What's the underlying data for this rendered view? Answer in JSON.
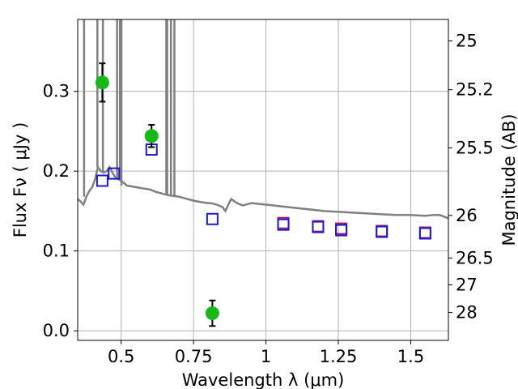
{
  "chart_data": {
    "type": "scatter",
    "xlabel": "Wavelength  λ (μm)",
    "ylabel": "Flux  Fν  ( μJy )",
    "y2label": "Magnitude (AB)",
    "xlim": [
      0.35,
      1.63
    ],
    "ylim": [
      -0.012,
      0.39
    ],
    "grid": true,
    "x_ticks": [
      0.5,
      0.75,
      1.0,
      1.25,
      1.5
    ],
    "x_tick_labels": [
      "0.5",
      "0.75",
      "1",
      "1.25",
      "1.5"
    ],
    "y_ticks": [
      0.0,
      0.1,
      0.2,
      0.3
    ],
    "y_tick_labels": [
      "0.0",
      "0.1",
      "0.2",
      "0.3"
    ],
    "y2_tick_labels": [
      {
        "label": "25",
        "flux": 0.3631
      },
      {
        "label": "25.2",
        "flux": 0.302
      },
      {
        "label": "25.5",
        "flux": 0.2291
      },
      {
        "label": "26",
        "flux": 0.1445
      },
      {
        "label": "26.5",
        "flux": 0.0912
      },
      {
        "label": "27",
        "flux": 0.0575
      },
      {
        "label": "28",
        "flux": 0.0229
      }
    ],
    "colors": {
      "model": "#808080",
      "observed": "#18b818",
      "model_blue": "#1a1acc",
      "model_red": "#b01060",
      "grid": "#b0b0b0"
    },
    "series": [
      {
        "kind": "line",
        "x": [
          0.35,
          0.36,
          0.37,
          0.38,
          0.39,
          0.4,
          0.41,
          0.42,
          0.43,
          0.44,
          0.45,
          0.46,
          0.47,
          0.48,
          0.49,
          0.5,
          0.52,
          0.55,
          0.58,
          0.6,
          0.62,
          0.64,
          0.65,
          0.66,
          0.7,
          0.72,
          0.75,
          0.78,
          0.8,
          0.81,
          0.83,
          0.85,
          0.86,
          0.87,
          0.88,
          0.9,
          0.92,
          0.95,
          1.0,
          1.05,
          1.1,
          1.15,
          1.2,
          1.25,
          1.3,
          1.35,
          1.4,
          1.45,
          1.5,
          1.55,
          1.58,
          1.6,
          1.63
        ],
        "y": [
          0.165,
          0.162,
          0.158,
          0.168,
          0.175,
          0.18,
          0.19,
          0.205,
          0.2,
          0.198,
          0.2,
          0.205,
          0.198,
          0.192,
          0.19,
          0.188,
          0.182,
          0.18,
          0.178,
          0.177,
          0.174,
          0.172,
          0.171,
          0.17,
          0.168,
          0.166,
          0.163,
          0.161,
          0.16,
          0.16,
          0.158,
          0.155,
          0.15,
          0.158,
          0.165,
          0.16,
          0.157,
          0.16,
          0.158,
          0.156,
          0.154,
          0.152,
          0.15,
          0.149,
          0.148,
          0.147,
          0.146,
          0.145,
          0.145,
          0.144,
          0.145,
          0.145,
          0.141
        ]
      },
      {
        "kind": "spikes",
        "x": [
          0.372,
          0.418,
          0.437,
          0.486,
          0.496,
          0.501,
          0.656,
          0.659,
          0.672,
          0.684
        ],
        "y": [
          0.39,
          0.39,
          0.39,
          0.39,
          0.39,
          0.39,
          0.39,
          0.39,
          0.39,
          0.39
        ]
      },
      {
        "kind": "observed",
        "x": [
          0.435,
          0.605,
          0.815
        ],
        "y": [
          0.311,
          0.244,
          0.022
        ],
        "err": [
          0.024,
          0.014,
          0.016
        ]
      },
      {
        "kind": "model_blue",
        "x": [
          0.435,
          0.475,
          0.605,
          0.815,
          1.06,
          1.18,
          1.26,
          1.4,
          1.55
        ],
        "y": [
          0.188,
          0.197,
          0.227,
          0.14,
          0.133,
          0.13,
          0.126,
          0.124,
          0.122
        ]
      },
      {
        "kind": "model_red",
        "x": [
          1.06,
          1.18,
          1.26,
          1.4,
          1.55
        ],
        "y": [
          0.135,
          0.131,
          0.128,
          0.125,
          0.123
        ]
      }
    ]
  }
}
